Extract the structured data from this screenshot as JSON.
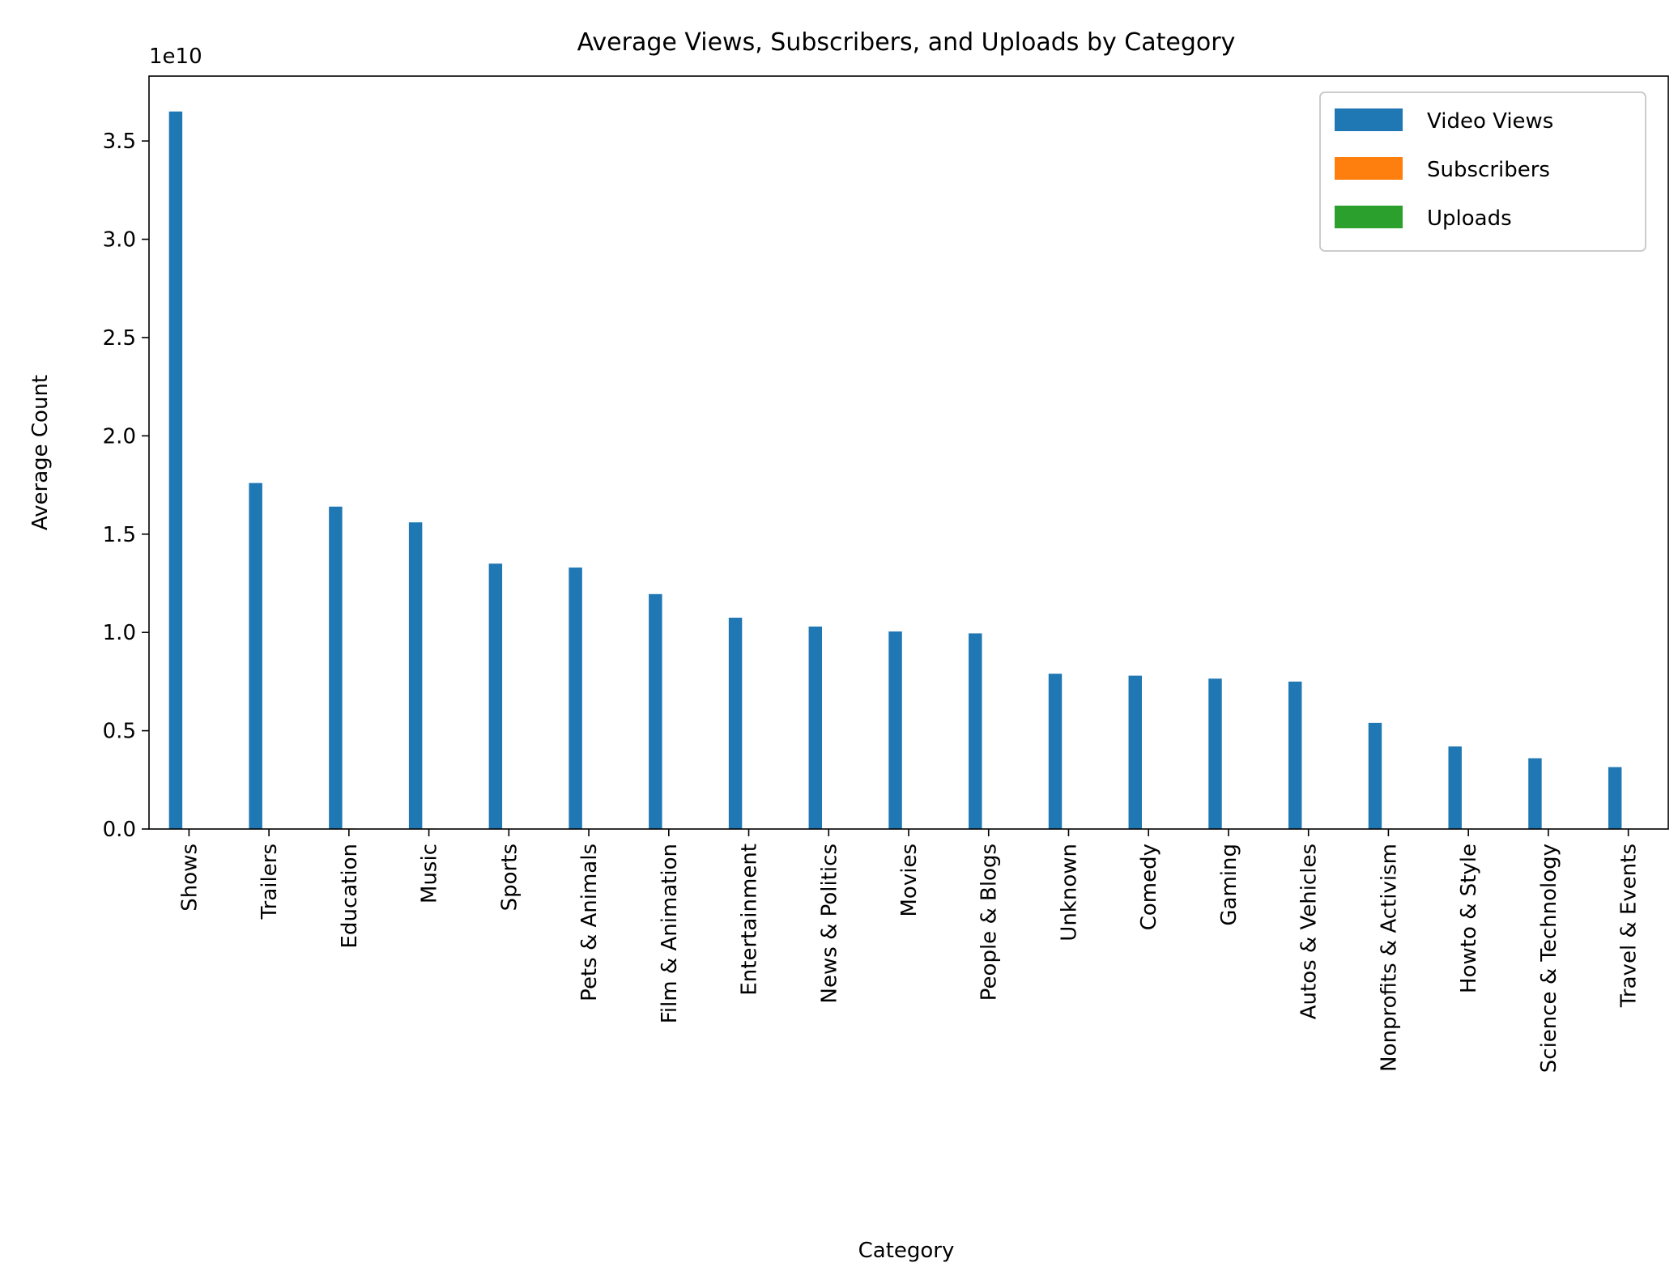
{
  "chart_data": {
    "type": "bar",
    "title": "Average Views, Subscribers, and Uploads by Category",
    "xlabel": "Category",
    "ylabel": "Average Count",
    "y_offset_text": "1e10",
    "ylim": [
      0,
      38300000000.0
    ],
    "yticks": [
      0,
      5000000000,
      10000000000,
      15000000000,
      20000000000,
      25000000000,
      30000000000,
      35000000000
    ],
    "ytick_labels": [
      "0.0",
      "0.5",
      "1.0",
      "1.5",
      "2.0",
      "2.5",
      "3.0",
      "3.5"
    ],
    "grid": false,
    "legend_position": "top-right",
    "categories": [
      "Shows",
      "Trailers",
      "Education",
      "Music",
      "Sports",
      "Pets & Animals",
      "Film & Animation",
      "Entertainment",
      "News & Politics",
      "Movies",
      "People & Blogs",
      "Unknown",
      "Comedy",
      "Gaming",
      "Autos & Vehicles",
      "Nonprofits & Activism",
      "Howto & Style",
      "Science & Technology",
      "Travel & Events"
    ],
    "series": [
      {
        "name": "Video Views",
        "color": "#1f77b4",
        "values": [
          36500000000,
          17600000000,
          16400000000,
          15600000000,
          13500000000,
          13300000000,
          11950000000,
          10750000000,
          10300000000,
          10050000000,
          9950000000,
          7900000000,
          7800000000,
          7650000000,
          7500000000,
          5400000000,
          4200000000,
          3600000000,
          3150000000
        ]
      },
      {
        "name": "Subscribers",
        "color": "#ff7f0e",
        "values": [
          21000000,
          21000000,
          30000000,
          28000000,
          22000000,
          19000000,
          23000000,
          21000000,
          20000000,
          18000000,
          19000000,
          17000000,
          20000000,
          22000000,
          17000000,
          13000000,
          16000000,
          16000000,
          11000000
        ]
      },
      {
        "name": "Uploads",
        "color": "#2ca02c",
        "values": [
          900,
          400,
          800,
          4000,
          3000,
          2000,
          5000,
          7000,
          35000,
          4000,
          4000,
          3000,
          1000,
          4000,
          8000,
          9000,
          1500,
          6000,
          4000
        ]
      }
    ]
  }
}
